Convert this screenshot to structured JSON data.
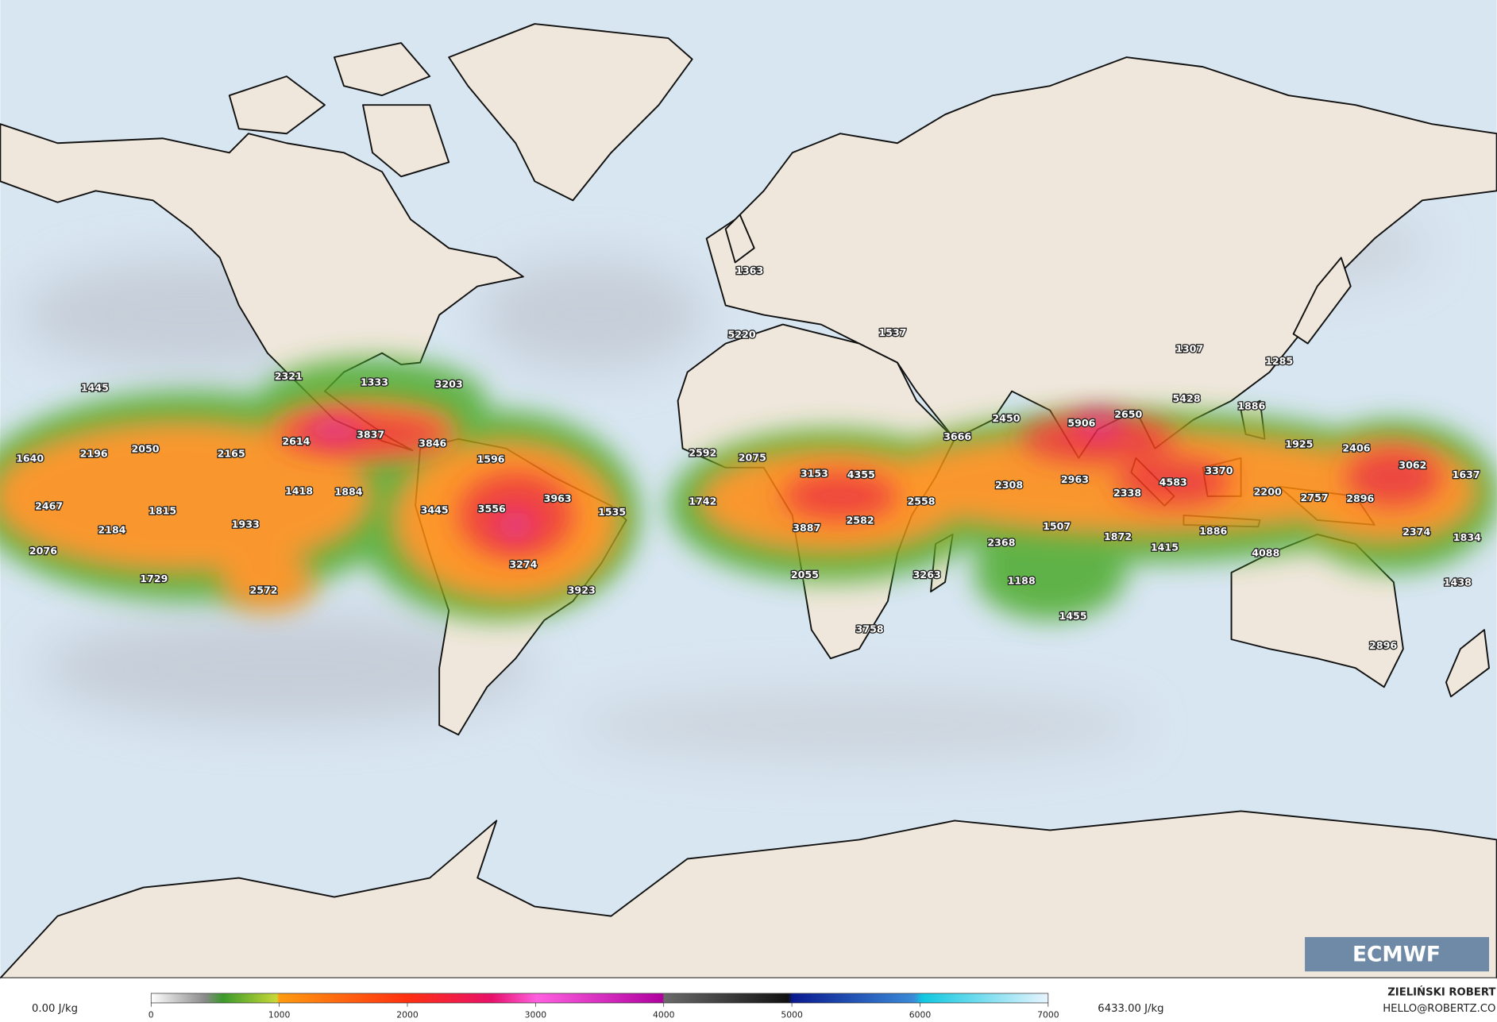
{
  "map": {
    "labels": [
      1363,
      5220,
      1537,
      2321,
      1333,
      3203,
      1445,
      3837,
      3846,
      2614,
      2050,
      2196,
      1640,
      2165,
      1596,
      1418,
      1884,
      2467,
      1815,
      3445,
      3556,
      3963,
      1535,
      2184,
      1933,
      2076,
      1729,
      2572,
      3274,
      3923,
      2592,
      2075,
      1742,
      3153,
      4355,
      2558,
      3887,
      2582,
      2055,
      3263,
      3758,
      3666,
      2450,
      5906,
      2650,
      2308,
      2963,
      2338,
      4583,
      3370,
      2200,
      1507,
      2368,
      1872,
      1415,
      1886,
      4088,
      1188,
      1455,
      1307,
      1285,
      5428,
      1886,
      1925,
      2406,
      3062,
      1637,
      2757,
      2896,
      2374,
      1834,
      1438,
      2896
    ],
    "colorbar": {
      "ticks": [
        0,
        1000,
        2000,
        3000,
        4000,
        5000,
        6000,
        7000
      ]
    },
    "min_label": "0.00 J/kg",
    "max_label": "6433.00 J/kg",
    "author": "ZIELIŃSKI ROBERT",
    "contact": "HELLO@ROBERTZ.CO",
    "logo": "ECMWF"
  }
}
